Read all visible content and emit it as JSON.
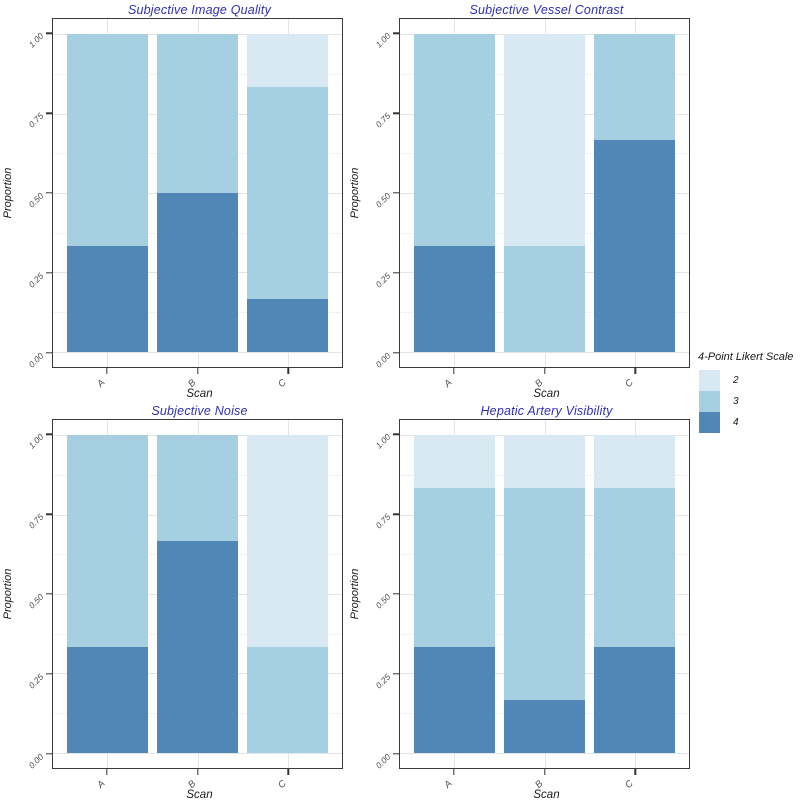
{
  "colors": {
    "2": "#d9e9f3",
    "3": "#a7cfe2",
    "4": "#5187b7",
    "title": "#2f2fb2",
    "axis_text": "#4d4d4d",
    "axis_title": "#1a1a1a",
    "panel_border": "#3a3a3a",
    "grid_major": "#e4e4e4",
    "grid_minor": "#f2f2f2"
  },
  "axes": {
    "y_label": "Proportion",
    "x_label": "Scan",
    "y_ticks": [
      {
        "value": 1.0,
        "label": "1.00"
      },
      {
        "value": 0.75,
        "label": "0.75"
      },
      {
        "value": 0.5,
        "label": "0.50"
      },
      {
        "value": 0.25,
        "label": "0.25"
      },
      {
        "value": 0.0,
        "label": "0.00"
      }
    ],
    "x_categories": [
      "A",
      "B",
      "C"
    ]
  },
  "legend": {
    "title": "4-Point Likert Scale",
    "entries": [
      {
        "label": "2",
        "color_key": "2"
      },
      {
        "label": "3",
        "color_key": "3"
      },
      {
        "label": "4",
        "color_key": "4"
      }
    ]
  },
  "chart_data": [
    {
      "type": "bar",
      "stacked": true,
      "title": "Subjective Image Quality",
      "xlabel": "Scan",
      "ylabel": "Proportion",
      "ylim": [
        0,
        1
      ],
      "grid": true,
      "legend_position": "right",
      "categories": [
        "A",
        "B",
        "C"
      ],
      "series": [
        {
          "name": "2",
          "values": [
            0,
            0,
            0.167
          ]
        },
        {
          "name": "3",
          "values": [
            0.667,
            0.5,
            0.666
          ]
        },
        {
          "name": "4",
          "values": [
            0.333,
            0.5,
            0.167
          ]
        }
      ]
    },
    {
      "type": "bar",
      "stacked": true,
      "title": "Subjective Vessel Contrast",
      "xlabel": "Scan",
      "ylabel": "Proportion",
      "ylim": [
        0,
        1
      ],
      "grid": true,
      "legend_position": "right",
      "categories": [
        "A",
        "B",
        "C"
      ],
      "series": [
        {
          "name": "2",
          "values": [
            0,
            0.667,
            0
          ]
        },
        {
          "name": "3",
          "values": [
            0.667,
            0.333,
            0.333
          ]
        },
        {
          "name": "4",
          "values": [
            0.333,
            0,
            0.667
          ]
        }
      ]
    },
    {
      "type": "bar",
      "stacked": true,
      "title": "Subjective Noise",
      "xlabel": "Scan",
      "ylabel": "Proportion",
      "ylim": [
        0,
        1
      ],
      "grid": true,
      "legend_position": "right",
      "categories": [
        "A",
        "B",
        "C"
      ],
      "series": [
        {
          "name": "2",
          "values": [
            0,
            0,
            0.667
          ]
        },
        {
          "name": "3",
          "values": [
            0.667,
            0.333,
            0.333
          ]
        },
        {
          "name": "4",
          "values": [
            0.333,
            0.667,
            0
          ]
        }
      ]
    },
    {
      "type": "bar",
      "stacked": true,
      "title": "Hepatic Artery Visibility",
      "xlabel": "Scan",
      "ylabel": "Proportion",
      "ylim": [
        0,
        1
      ],
      "grid": true,
      "legend_position": "right",
      "categories": [
        "A",
        "B",
        "C"
      ],
      "series": [
        {
          "name": "2",
          "values": [
            0.167,
            0.167,
            0.167
          ]
        },
        {
          "name": "3",
          "values": [
            0.5,
            0.666,
            0.5
          ]
        },
        {
          "name": "4",
          "values": [
            0.333,
            0.167,
            0.333
          ]
        }
      ]
    }
  ]
}
